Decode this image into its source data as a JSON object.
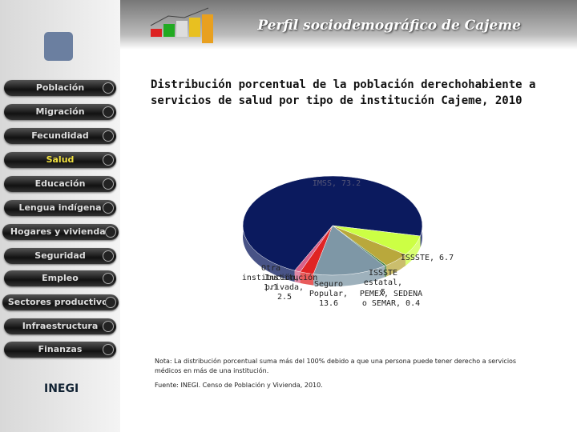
{
  "header": {
    "title": "Perfil sociodemográfico de Cajeme"
  },
  "nav": [
    "Población",
    "Migración",
    "Fecundidad",
    "Salud",
    "Educación",
    "Lengua indígena",
    "Hogares y viviendas",
    "Seguridad",
    "Empleo",
    "Sectores productivos",
    "Infraestructura",
    "Finanzas"
  ],
  "chart_data": {
    "type": "pie",
    "title": "Distribución porcentual de la población derechohabiente a servicios de salud por tipo de institución Cajeme, 2010",
    "values": [
      73.2,
      6.7,
      5,
      0.4,
      13.6,
      2.5,
      1.1
    ],
    "value_labels": [
      "IMSS, 73.2",
      "ISSSTE, 6.7",
      "ISSSTE estatal, 5",
      "PEMEX, SEDENA o SEMAR, 0.4",
      "Seguro Popular, 13.6",
      "Institución privada, 2.5",
      "Otra institución, 1.1"
    ],
    "colors": [
      "#0b1a5e",
      "#ccff44",
      "#b9a83c",
      "#3a7a3a",
      "#7e97a6",
      "#e02424",
      "#d8608a"
    ]
  },
  "note": "Nota: La distribución porcentual suma más del 100% debido a que una persona puede tener derecho a servicios médicos en más de una institución.",
  "source": "Fuente: INEGI. Censo de Población y Vivienda, 2010.",
  "logo": "INEGI"
}
